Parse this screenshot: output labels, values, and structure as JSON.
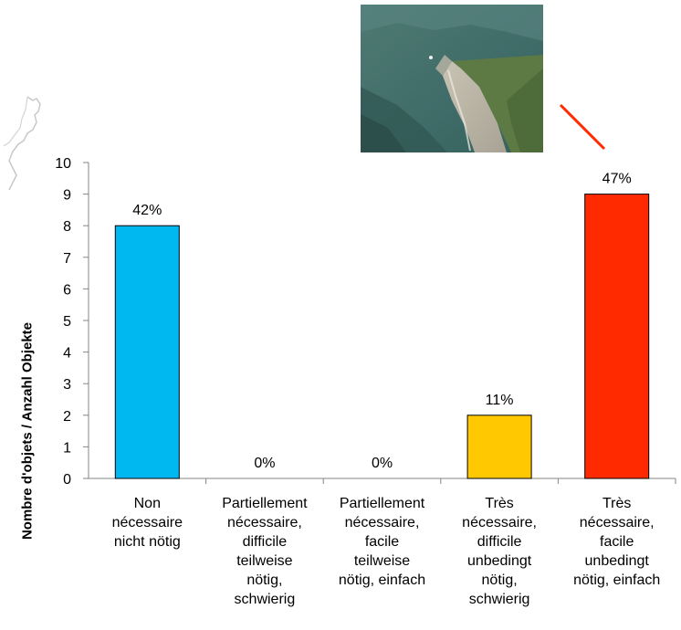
{
  "image": {
    "aerial_photo": "aerial photo of a lake shoreline with a sand spit",
    "map_outline": "grey outline of a lake shore",
    "pointer_color": "#FF2A00"
  },
  "chart_data": {
    "type": "bar",
    "title": "",
    "xlabel": "",
    "ylabel": "Nombre d'objets / Anzahl Objekte",
    "ylim": [
      0,
      10
    ],
    "yticks": [
      0,
      1,
      2,
      3,
      4,
      5,
      6,
      7,
      8,
      9,
      10
    ],
    "grid": false,
    "legend": "none",
    "categories": [
      [
        "Non",
        "nécessaire",
        "nicht nötig"
      ],
      [
        "Partiellement",
        "nécessaire,",
        "difficile",
        "teilweise",
        "nötig,",
        "schwierig"
      ],
      [
        "Partiellement",
        "nécessaire,",
        "facile",
        "teilweise",
        "nötig, einfach"
      ],
      [
        "Très",
        "nécessaire,",
        "difficile",
        "unbedingt",
        "nötig,",
        "schwierig"
      ],
      [
        "Très",
        "nécessaire,",
        "facile",
        "unbedingt",
        "nötig, einfach"
      ]
    ],
    "values": [
      8,
      0,
      0,
      2,
      9
    ],
    "data_labels": [
      "42%",
      "0%",
      "0%",
      "11%",
      "47%"
    ],
    "colors": [
      "#00B8F0",
      "#7F7F7F",
      "#7F7F7F",
      "#FFC800",
      "#FF2A00"
    ]
  }
}
